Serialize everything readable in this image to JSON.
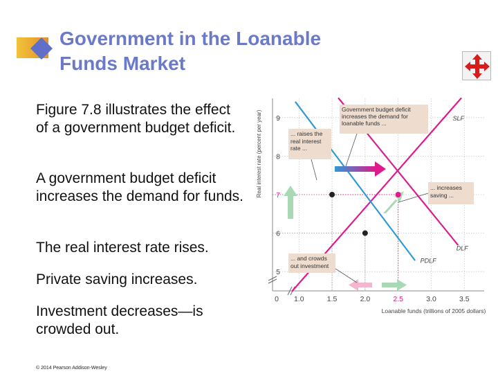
{
  "slide": {
    "title_line1": "Government in the Loanable",
    "title_line2": "Funds Market",
    "paragraphs": [
      "Figure 7.8 illustrates the effect of a government budget deficit.",
      "A government budget deficit increases the demand for funds.",
      "The real interest rate rises.",
      "Private saving increases.",
      "Investment decreases—is crowded out."
    ],
    "copyright": "© 2014 Pearson Addison-Wesley",
    "nav_icon": "four-arrows-icon"
  },
  "colors": {
    "title": "#6b79c9",
    "slf": "#e0198c",
    "dlf": "#d81e8f",
    "pdlf": "#2f9ad6",
    "green_arrow": "#a8d8b4",
    "pink_arrow": "#f4b6cf",
    "callout": "#eedccf",
    "nav_red": "#d81b1b"
  },
  "chart_data": {
    "type": "line",
    "xlabel": "Loanable funds (trillions of 2005 dollars)",
    "ylabel": "Real interest rate (percent per year)",
    "xlim": [
      0.6,
      3.8
    ],
    "ylim": [
      4.5,
      9.5
    ],
    "x_ticks": [
      "0",
      "1.0",
      "1.5",
      "2.0",
      "2.5",
      "3.0",
      "3.5"
    ],
    "y_ticks": [
      "5",
      "6",
      "7",
      "8",
      "9"
    ],
    "highlight_x_tick": "2.5",
    "highlight_y_tick": "7",
    "series": [
      {
        "name": "SLF",
        "points": [
          [
            0.9,
            4.0
          ],
          [
            3.45,
            9.7
          ]
        ]
      },
      {
        "name": "DLF",
        "points": [
          [
            1.6,
            9.7
          ],
          [
            3.4,
            5.7
          ]
        ]
      },
      {
        "name": "PDLF",
        "points": [
          [
            0.95,
            9.4
          ],
          [
            2.75,
            5.3
          ]
        ]
      }
    ],
    "equilibria": [
      {
        "label": "initial",
        "x": 2.0,
        "y": 6.0
      },
      {
        "label": "new",
        "x": 2.5,
        "y": 7.0
      },
      {
        "label": "investment",
        "x": 1.5,
        "y": 7.0
      }
    ],
    "annotations": [
      "Government budget deficit increases the demand for loanable funds ...",
      "... raises the real interest rate ...",
      "... increases saving ...",
      "... and crowds out investment"
    ]
  }
}
